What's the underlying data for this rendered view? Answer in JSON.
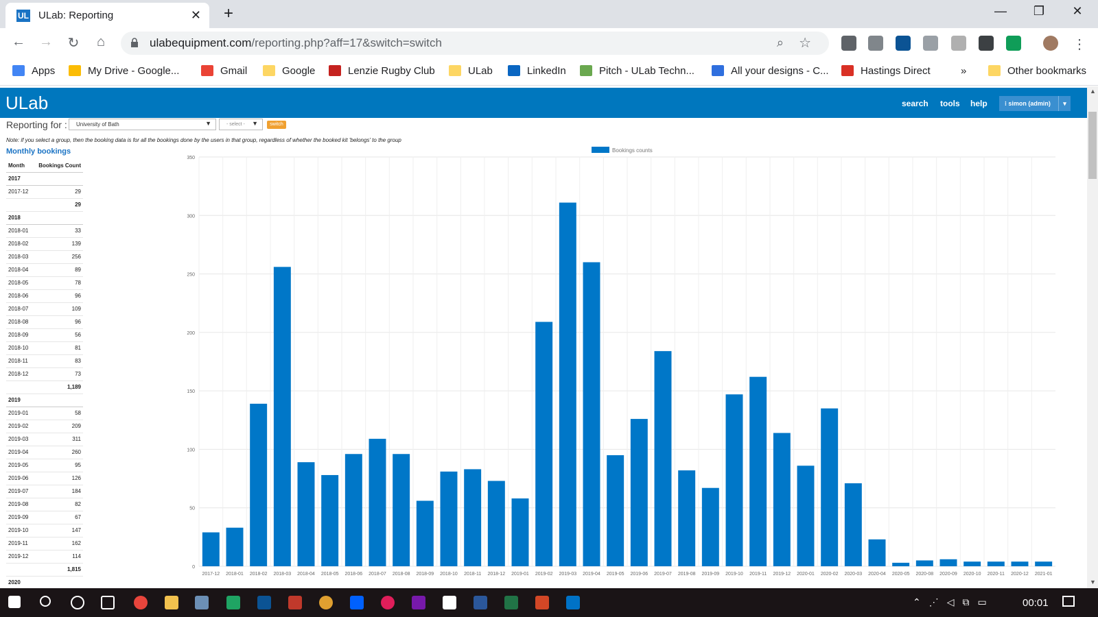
{
  "browser": {
    "tab_title": "ULab: Reporting",
    "favicon_text": "UL",
    "url_host": "ulabequipment.com",
    "url_path": "/reporting.php?aff=17&switch=switch",
    "bookmarks": [
      {
        "label": "Apps",
        "color": "#4285f4"
      },
      {
        "label": "My Drive - Google...",
        "color": "#fbbc05"
      },
      {
        "label": "Gmail",
        "color": "#ea4335"
      },
      {
        "label": "Google",
        "color": "#fdd663"
      },
      {
        "label": "Lenzie Rugby Club",
        "color": "#c5221f"
      },
      {
        "label": "ULab",
        "color": "#fdd663"
      },
      {
        "label": "LinkedIn",
        "color": "#0a66c2"
      },
      {
        "label": "Pitch - ULab Techn...",
        "color": "#6aa84f"
      },
      {
        "label": "All your designs - C...",
        "color": "#2f6fde"
      },
      {
        "label": "Hastings Direct",
        "color": "#d93025"
      }
    ],
    "overflow": "»",
    "other_bookmarks": "Other bookmarks"
  },
  "app": {
    "logo": "ULab",
    "nav": [
      "search",
      "tools",
      "help"
    ],
    "user": "simon (admin)"
  },
  "reporting": {
    "label": "Reporting for :",
    "org": "University of Bath",
    "group_placeholder": "- select -",
    "switch_label": "switch",
    "note": "Note: if you select a group, then the booking data is for all the bookings done by the users in that group, regardless of whether the booked kit 'belongs' to the group",
    "monthly_title": "Monthly bookings"
  },
  "table": {
    "headers": [
      "Month",
      "Bookings Count"
    ],
    "rows": [
      {
        "type": "year",
        "c1": "2017",
        "c2": ""
      },
      {
        "type": "row",
        "c1": "2017-12",
        "c2": "29"
      },
      {
        "type": "total",
        "c1": "",
        "c2": "29"
      },
      {
        "type": "year",
        "c1": "2018",
        "c2": ""
      },
      {
        "type": "row",
        "c1": "2018-01",
        "c2": "33"
      },
      {
        "type": "row",
        "c1": "2018-02",
        "c2": "139"
      },
      {
        "type": "row",
        "c1": "2018-03",
        "c2": "256"
      },
      {
        "type": "row",
        "c1": "2018-04",
        "c2": "89"
      },
      {
        "type": "row",
        "c1": "2018-05",
        "c2": "78"
      },
      {
        "type": "row",
        "c1": "2018-06",
        "c2": "96"
      },
      {
        "type": "row",
        "c1": "2018-07",
        "c2": "109"
      },
      {
        "type": "row",
        "c1": "2018-08",
        "c2": "96"
      },
      {
        "type": "row",
        "c1": "2018-09",
        "c2": "56"
      },
      {
        "type": "row",
        "c1": "2018-10",
        "c2": "81"
      },
      {
        "type": "row",
        "c1": "2018-11",
        "c2": "83"
      },
      {
        "type": "row",
        "c1": "2018-12",
        "c2": "73"
      },
      {
        "type": "total",
        "c1": "",
        "c2": "1,189"
      },
      {
        "type": "year",
        "c1": "2019",
        "c2": ""
      },
      {
        "type": "row",
        "c1": "2019-01",
        "c2": "58"
      },
      {
        "type": "row",
        "c1": "2019-02",
        "c2": "209"
      },
      {
        "type": "row",
        "c1": "2019-03",
        "c2": "311"
      },
      {
        "type": "row",
        "c1": "2019-04",
        "c2": "260"
      },
      {
        "type": "row",
        "c1": "2019-05",
        "c2": "95"
      },
      {
        "type": "row",
        "c1": "2019-06",
        "c2": "126"
      },
      {
        "type": "row",
        "c1": "2019-07",
        "c2": "184"
      },
      {
        "type": "row",
        "c1": "2019-08",
        "c2": "82"
      },
      {
        "type": "row",
        "c1": "2019-09",
        "c2": "67"
      },
      {
        "type": "row",
        "c1": "2019-10",
        "c2": "147"
      },
      {
        "type": "row",
        "c1": "2019-11",
        "c2": "162"
      },
      {
        "type": "row",
        "c1": "2019-12",
        "c2": "114"
      },
      {
        "type": "total",
        "c1": "",
        "c2": "1,815"
      },
      {
        "type": "year",
        "c1": "2020",
        "c2": ""
      }
    ]
  },
  "chart_data": {
    "type": "bar",
    "legend": "Bookings counts",
    "legend_position": "top",
    "color": "#0077c8",
    "ylim": [
      0,
      350
    ],
    "yticks": [
      0,
      50,
      100,
      150,
      200,
      250,
      300,
      350
    ],
    "grid": true,
    "categories": [
      "2017-12",
      "2018-01",
      "2018-02",
      "2018-03",
      "2018-04",
      "2018-05",
      "2018-06",
      "2018-07",
      "2018-08",
      "2018-09",
      "2018-10",
      "2018-11",
      "2018-12",
      "2019-01",
      "2019-02",
      "2019-03",
      "2019-04",
      "2019-05",
      "2019-06",
      "2019-07",
      "2019-08",
      "2019-09",
      "2019-10",
      "2019-11",
      "2019-12",
      "2020-01",
      "2020-02",
      "2020-03",
      "2020-04",
      "2020-05",
      "2020-08",
      "2020-09",
      "2020-10",
      "2020-11",
      "2020-12",
      "2021-01"
    ],
    "values": [
      29,
      33,
      139,
      256,
      89,
      78,
      96,
      109,
      96,
      56,
      81,
      83,
      73,
      58,
      209,
      311,
      260,
      95,
      126,
      184,
      82,
      67,
      147,
      162,
      114,
      86,
      135,
      71,
      23,
      3,
      5,
      6,
      4,
      4,
      4,
      4
    ]
  },
  "taskbar": {
    "clock": "00:01"
  }
}
